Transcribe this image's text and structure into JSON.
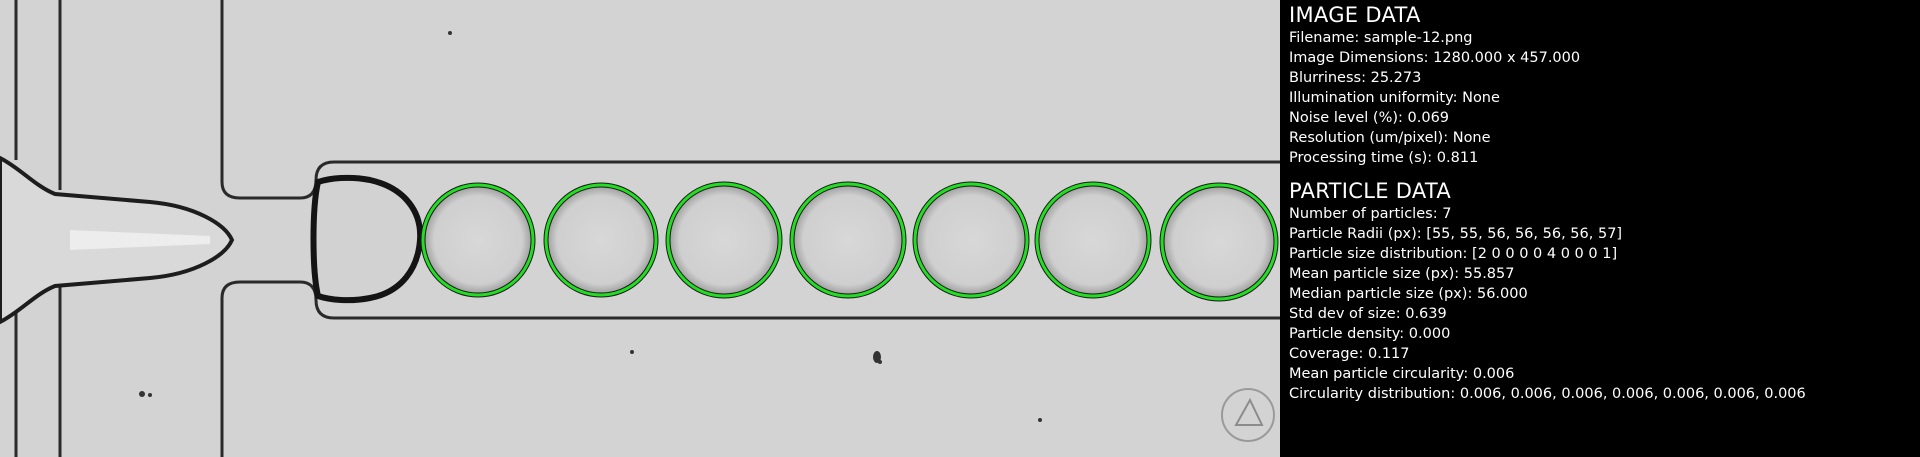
{
  "image_data": {
    "title": "IMAGE DATA",
    "rows": [
      {
        "label": "Filename",
        "value": "sample-12.png"
      },
      {
        "label": "Image Dimensions",
        "value": "1280.000 x 457.000"
      },
      {
        "label": "Blurriness",
        "value": "25.273"
      },
      {
        "label": "Illumination uniformity",
        "value": "None"
      },
      {
        "label": "Noise level (%)",
        "value": "0.069"
      },
      {
        "label": "Resolution (um/pixel)",
        "value": "None"
      },
      {
        "label": "Processing time (s)",
        "value": "0.811"
      }
    ]
  },
  "particle_data": {
    "title": "PARTICLE DATA",
    "rows": [
      {
        "label": "Number of particles",
        "value": "7"
      },
      {
        "label": "Particle Radii (px)",
        "value": "[55, 55, 56, 56, 56, 56, 57]"
      },
      {
        "label": "Particle size distribution",
        "value": "[2 0 0 0 0 4 0 0 0 1]"
      },
      {
        "label": "Mean particle size (px)",
        "value": "55.857"
      },
      {
        "label": "Median particle size (px)",
        "value": "56.000"
      },
      {
        "label": "Std dev of size",
        "value": "0.639"
      },
      {
        "label": "Particle density",
        "value": "0.000"
      },
      {
        "label": "Coverage",
        "value": "0.117"
      },
      {
        "label": "Mean particle circularity",
        "value": "0.006"
      },
      {
        "label": "Circularity distribution",
        "value": "0.006, 0.006, 0.006, 0.006, 0.006, 0.006, 0.006"
      }
    ]
  },
  "colors": {
    "detection_circle": "#22dd22",
    "panel_background": "#000000",
    "panel_text": "#ffffff",
    "channel_background": "#d4d4d4"
  }
}
